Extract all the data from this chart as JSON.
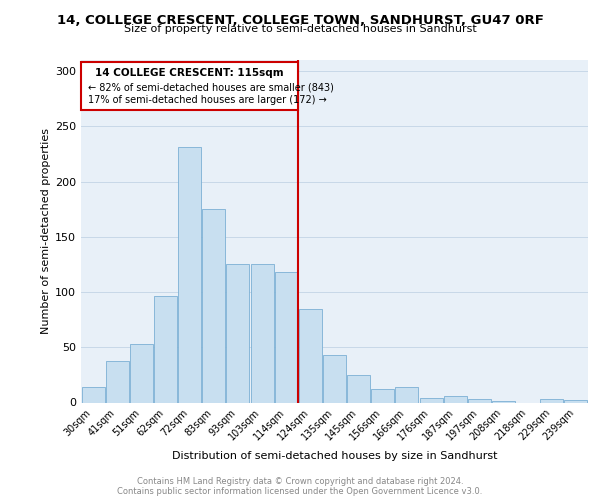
{
  "title": "14, COLLEGE CRESCENT, COLLEGE TOWN, SANDHURST, GU47 0RF",
  "subtitle": "Size of property relative to semi-detached houses in Sandhurst",
  "xlabel": "Distribution of semi-detached houses by size in Sandhurst",
  "ylabel": "Number of semi-detached properties",
  "categories": [
    "30sqm",
    "41sqm",
    "51sqm",
    "62sqm",
    "72sqm",
    "83sqm",
    "93sqm",
    "103sqm",
    "114sqm",
    "124sqm",
    "135sqm",
    "145sqm",
    "156sqm",
    "166sqm",
    "176sqm",
    "187sqm",
    "197sqm",
    "208sqm",
    "218sqm",
    "229sqm",
    "239sqm"
  ],
  "values": [
    14,
    38,
    53,
    96,
    231,
    175,
    125,
    125,
    118,
    85,
    43,
    25,
    12,
    14,
    4,
    6,
    3,
    1,
    0,
    3,
    2
  ],
  "bar_color": "#c8dff0",
  "bar_edge_color": "#7bafd4",
  "property_label": "14 COLLEGE CRESCENT: 115sqm",
  "pct_smaller": 82,
  "n_smaller": 843,
  "pct_larger": 17,
  "n_larger": 172,
  "vline_color": "#cc0000",
  "vline_bar_index": 8,
  "ylim": [
    0,
    310
  ],
  "yticks": [
    0,
    50,
    100,
    150,
    200,
    250,
    300
  ],
  "grid_color": "#c8d8e8",
  "bg_color": "#e8f0f8",
  "footer": "Contains HM Land Registry data © Crown copyright and database right 2024.\nContains public sector information licensed under the Open Government Licence v3.0."
}
